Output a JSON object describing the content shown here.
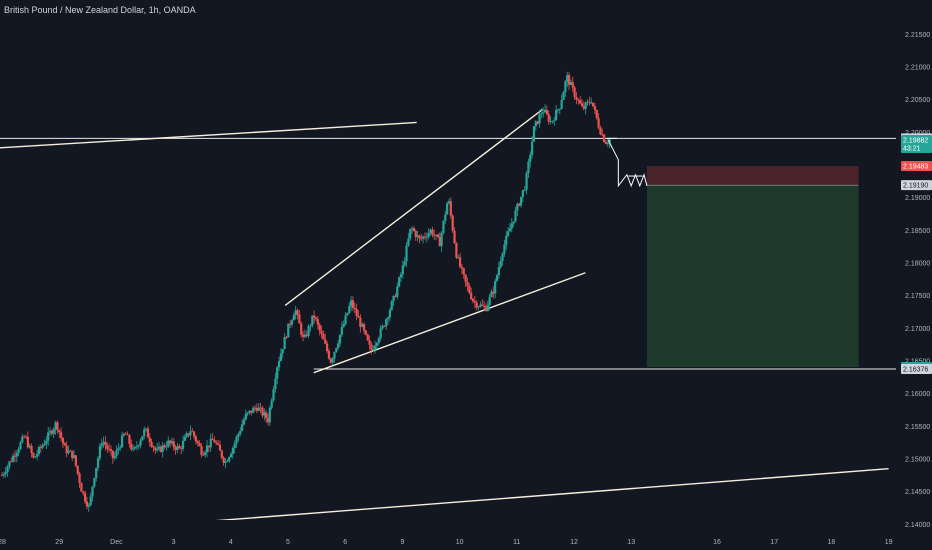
{
  "header": {
    "title": "British Pound / New Zealand Dollar, 1h, OANDA"
  },
  "colors": {
    "background": "#131722",
    "up": "#26a69a",
    "down": "#ef5350",
    "trendline": "#f5efdc",
    "hline": "#e8e8e8",
    "stop_zone": "#4a2429",
    "target_zone": "#1e3a2d",
    "badge_current": "#26a69a",
    "badge_stop": "#ef5350",
    "badge_neutral": "#d1d4dc"
  },
  "chart_data": {
    "type": "candlestick",
    "title": "British Pound / New Zealand Dollar, 1h, OANDA",
    "x_tick_labels": [
      "28",
      "29",
      "Dec",
      "3",
      "4",
      "5",
      "6",
      "9",
      "10",
      "11",
      "12",
      "13",
      "16",
      "17",
      "18",
      "19"
    ],
    "y_tick_labels": [
      "2.21500",
      "2.21000",
      "2.20500",
      "2.20000",
      "2.19500",
      "2.19000",
      "2.18500",
      "2.18000",
      "2.17500",
      "2.17000",
      "2.16500",
      "2.16000",
      "2.15500",
      "2.15000",
      "2.14500",
      "2.14000"
    ],
    "ylim": [
      2.1385,
      2.2175
    ],
    "x_range_days": [
      "Nov 27",
      "Dec 20"
    ],
    "price_path": [
      [
        0.0,
        2.1475
      ],
      [
        0.4,
        2.1505
      ],
      [
        0.8,
        2.1535
      ],
      [
        1.1,
        2.15
      ],
      [
        1.4,
        2.152
      ],
      [
        1.9,
        2.1555
      ],
      [
        2.2,
        2.1515
      ],
      [
        2.5,
        2.1505
      ],
      [
        2.8,
        2.145
      ],
      [
        3.05,
        2.1425
      ],
      [
        3.2,
        2.147
      ],
      [
        3.5,
        2.153
      ],
      [
        3.9,
        2.15
      ],
      [
        4.3,
        2.154
      ],
      [
        4.6,
        2.151
      ],
      [
        5.0,
        2.1545
      ],
      [
        5.4,
        2.151
      ],
      [
        5.8,
        2.1525
      ],
      [
        6.2,
        2.1515
      ],
      [
        6.6,
        2.1545
      ],
      [
        7.0,
        2.151
      ],
      [
        7.4,
        2.153
      ],
      [
        7.8,
        2.1495
      ],
      [
        8.1,
        2.152
      ],
      [
        8.5,
        2.1565
      ],
      [
        8.9,
        2.158
      ],
      [
        9.3,
        2.156
      ],
      [
        9.6,
        2.164
      ],
      [
        10.0,
        2.17
      ],
      [
        10.25,
        2.173
      ],
      [
        10.55,
        2.168
      ],
      [
        10.9,
        2.172
      ],
      [
        11.2,
        2.1685
      ],
      [
        11.5,
        2.165
      ],
      [
        11.9,
        2.17
      ],
      [
        12.2,
        2.174
      ],
      [
        12.6,
        2.17
      ],
      [
        12.9,
        2.1665
      ],
      [
        13.3,
        2.17
      ],
      [
        13.7,
        2.1745
      ],
      [
        14.0,
        2.179
      ],
      [
        14.3,
        2.1855
      ],
      [
        14.6,
        2.1835
      ],
      [
        15.0,
        2.185
      ],
      [
        15.3,
        2.183
      ],
      [
        15.6,
        2.19
      ],
      [
        15.9,
        2.181
      ],
      [
        16.2,
        2.177
      ],
      [
        16.5,
        2.174
      ],
      [
        16.9,
        2.173
      ],
      [
        17.2,
        2.176
      ],
      [
        17.5,
        2.182
      ],
      [
        17.9,
        2.187
      ],
      [
        18.3,
        2.192
      ],
      [
        18.6,
        2.2005
      ],
      [
        18.9,
        2.2035
      ],
      [
        19.2,
        2.2015
      ],
      [
        19.5,
        2.204
      ],
      [
        19.75,
        2.2085
      ],
      [
        20.0,
        2.206
      ],
      [
        20.3,
        2.2035
      ],
      [
        20.6,
        2.205
      ],
      [
        20.9,
        2.2005
      ],
      [
        21.1,
        2.1985
      ],
      [
        21.25,
        2.199
      ]
    ],
    "trendlines": [
      {
        "from": [
          -0.5,
          2.1975
        ],
        "to": [
          14.5,
          2.2015
        ]
      },
      {
        "from": [
          9.9,
          2.1735
        ],
        "to": [
          18.9,
          2.2035
        ]
      },
      {
        "from": [
          10.9,
          2.1632
        ],
        "to": [
          20.4,
          2.1785
        ]
      },
      {
        "from": [
          2.9,
          2.139
        ],
        "to": [
          31.0,
          2.1485
        ]
      }
    ],
    "horizontal_lines": [
      {
        "price": 2.19907,
        "from": -1,
        "to": 40
      },
      {
        "price": 2.16376,
        "from": 10.9,
        "to": 40
      }
    ],
    "projected_path": [
      [
        21.2,
        2.1988
      ],
      [
        21.55,
        2.1958
      ],
      [
        21.55,
        2.1918
      ],
      [
        21.85,
        2.1935
      ],
      [
        22.0,
        2.1918
      ],
      [
        22.15,
        2.1935
      ],
      [
        22.3,
        2.1918
      ],
      [
        22.45,
        2.1935
      ],
      [
        22.55,
        2.1918
      ]
    ],
    "level_ticks": [
      {
        "price": 2.19907,
        "from": 21.15,
        "to": 21.5
      },
      {
        "price": 2.1933,
        "from": 21.9,
        "to": 22.4
      }
    ],
    "position": {
      "start_day": 22.55,
      "end_day": 29.95,
      "stop_top": 2.19483,
      "entry": 2.1919,
      "target": 2.16407
    },
    "price_badges": [
      {
        "label": "2.19907",
        "price": 2.19907,
        "style": "neutral"
      },
      {
        "label": "2.19882",
        "sub": "43:21",
        "price": 2.19882,
        "style": "current"
      },
      {
        "label": "2.19483",
        "price": 2.19483,
        "style": "stop"
      },
      {
        "label": "2.19190",
        "price": 2.1919,
        "style": "neutral"
      },
      {
        "label": "2.16407",
        "price": 2.16407,
        "style": "current"
      },
      {
        "label": "2.16376",
        "price": 2.16376,
        "style": "neutral"
      }
    ]
  }
}
